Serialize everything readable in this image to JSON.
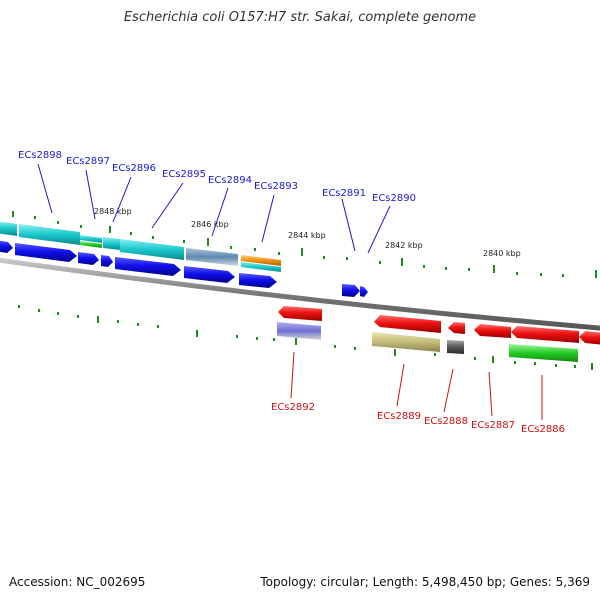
{
  "title": "Escherichia coli O157:H7 str. Sakai, complete genome",
  "footer": {
    "accession": "Accession: NC_002695",
    "info": "Topology: circular; Length: 5,498,450 bp; Genes: 5,369"
  },
  "ruler_labels": [
    "2848 kbp",
    "2846 kbp",
    "2844 kbp",
    "2842 kbp",
    "2840 kbp"
  ],
  "genes_forward": [
    "ECs2898",
    "ECs2897",
    "ECs2896",
    "ECs2895",
    "ECs2894",
    "ECs2893",
    "ECs2891",
    "ECs2890"
  ],
  "genes_reverse": [
    "ECs2892",
    "ECs2889",
    "ECs2888",
    "ECs2887",
    "ECs2886"
  ],
  "colors": {
    "forward_label": "#1a1acc",
    "reverse_label": "#cc1111",
    "forward_cds": "#1111ee",
    "reverse_cds": "#ee1111",
    "tick": "#1f8a1f",
    "backbone": "#888888"
  }
}
